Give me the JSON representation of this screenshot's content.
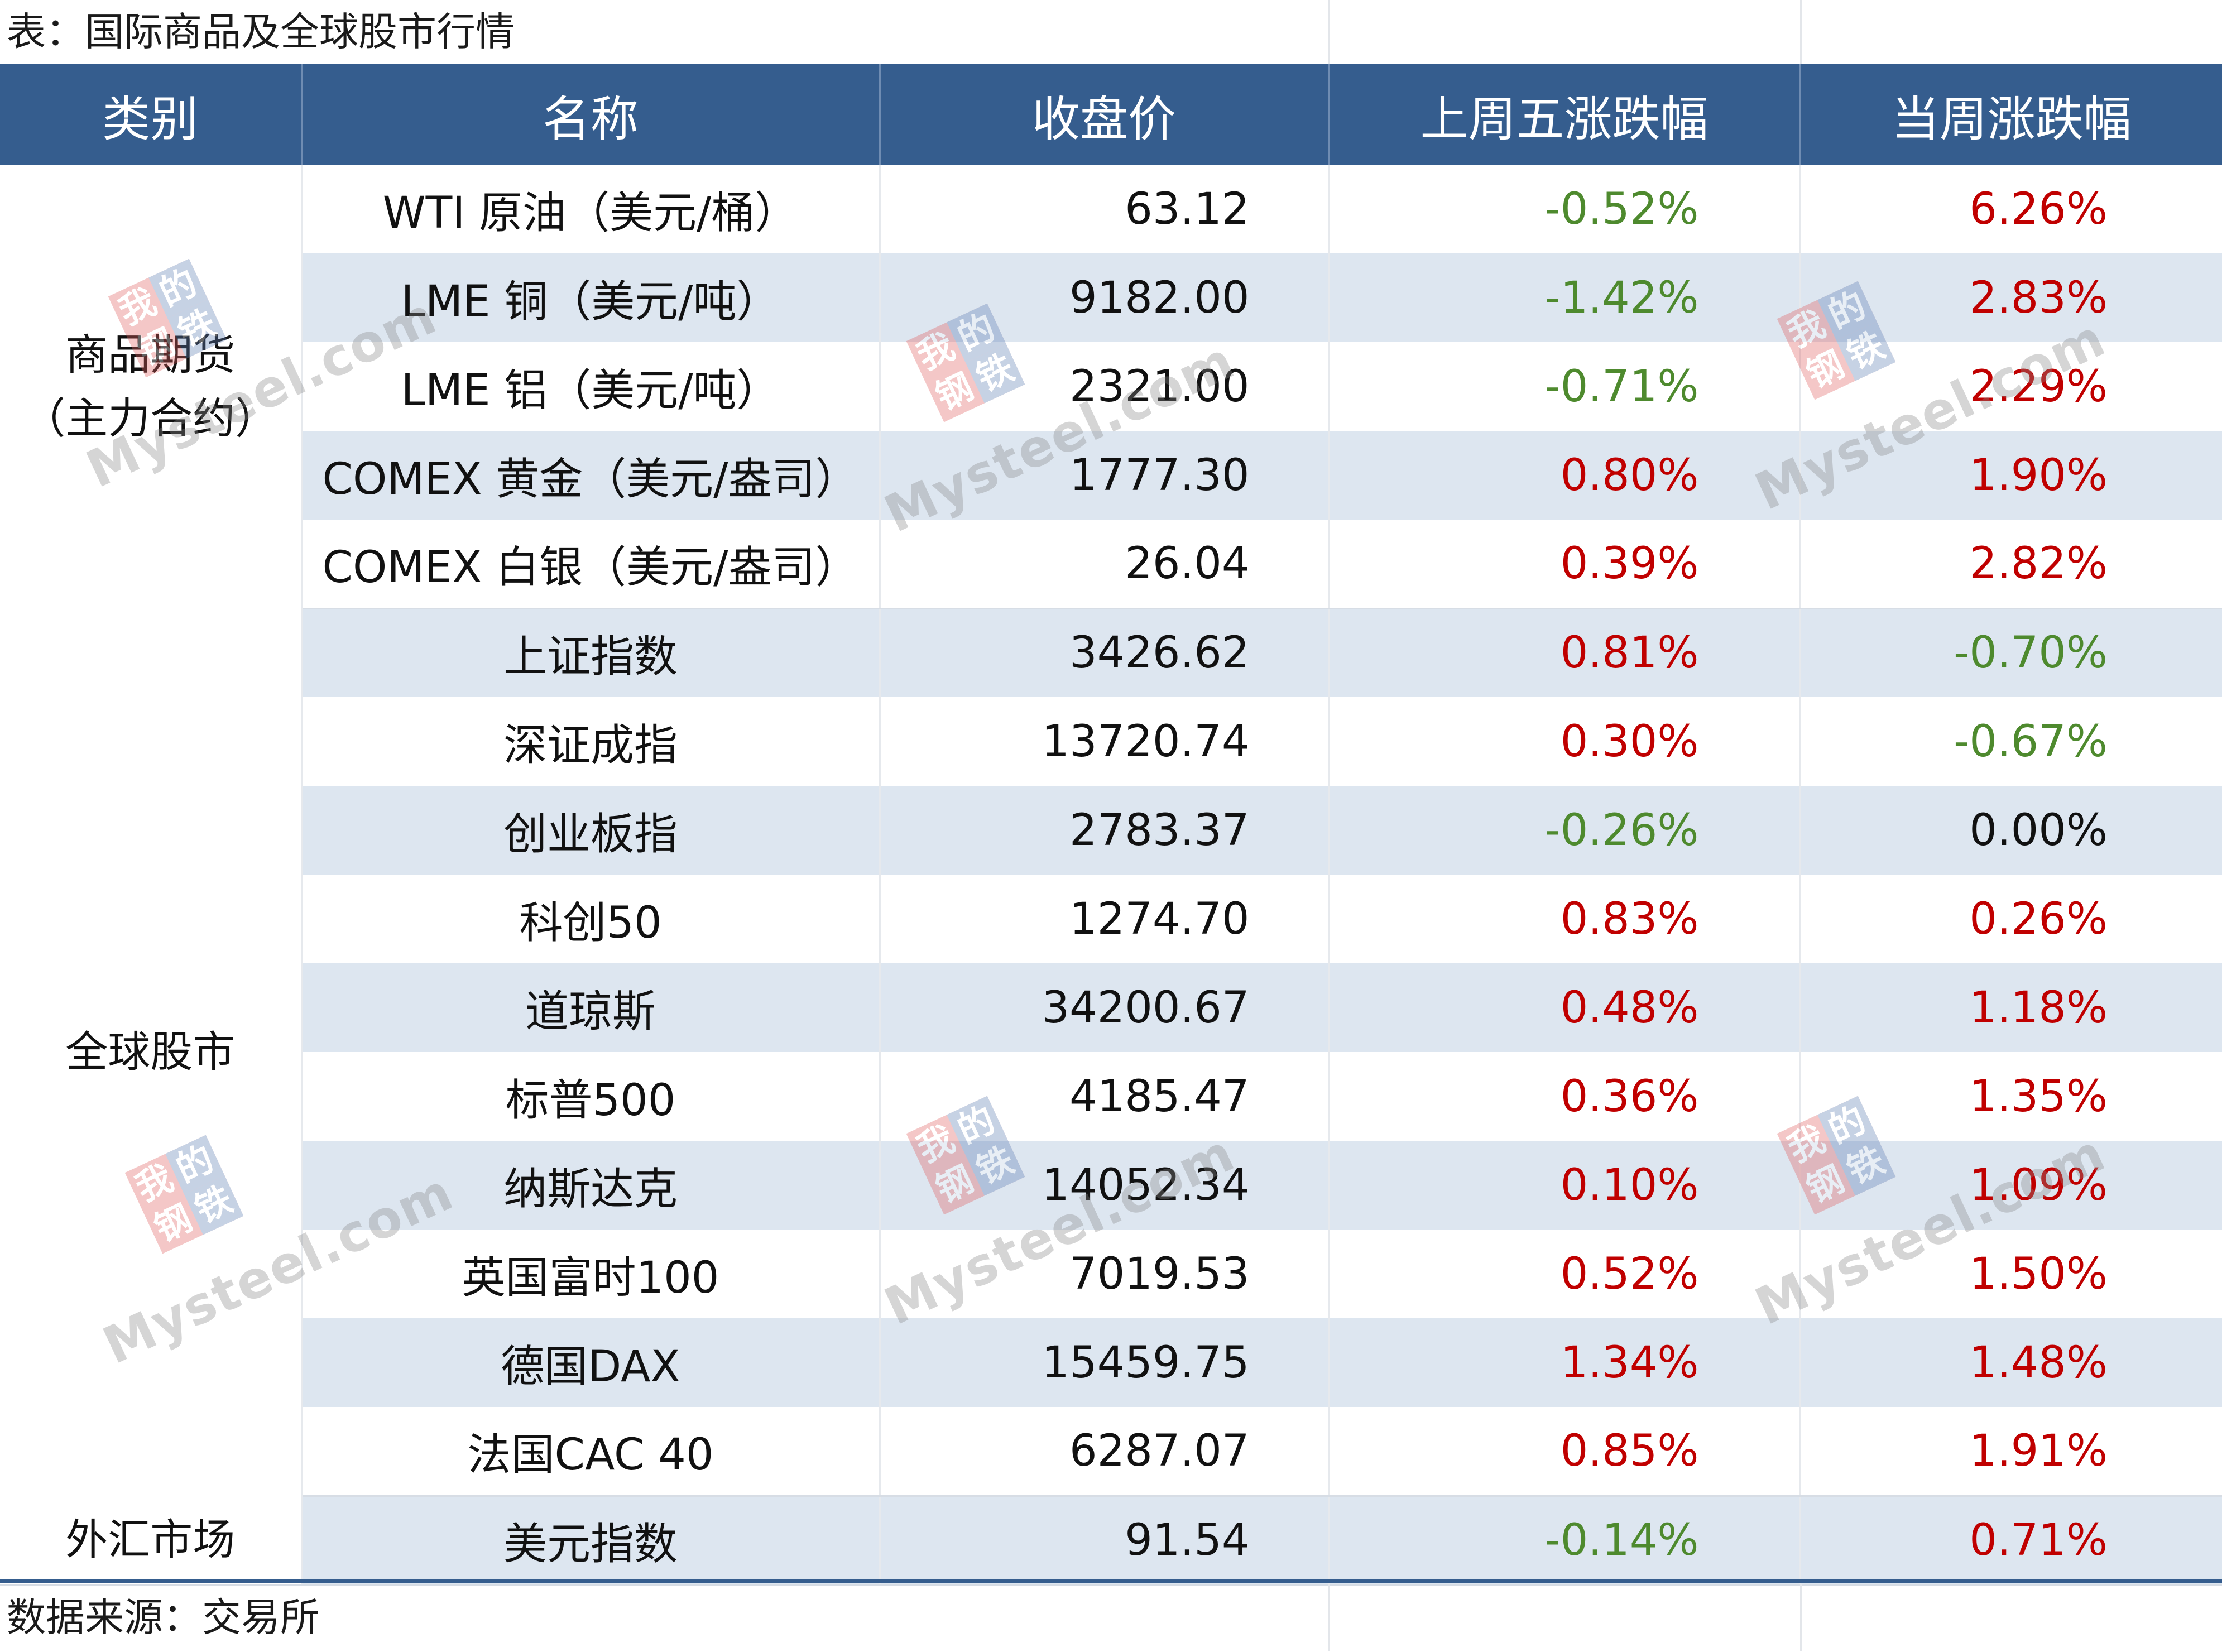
{
  "caption": "表：国际商品及全球股市行情",
  "source": "数据来源：交易所",
  "headers": [
    "类别",
    "名称",
    "收盘价",
    "上周五涨跌幅",
    "当周涨跌幅"
  ],
  "groups": [
    {
      "category_line1": "商品期货",
      "category_line2": "（主力合约）",
      "rows": [
        {
          "name": "WTI 原油（美元/桶）",
          "close": "63.12",
          "fri": "-0.52%",
          "week": "6.26%"
        },
        {
          "name": "LME 铜（美元/吨）",
          "close": "9182.00",
          "fri": "-1.42%",
          "week": "2.83%"
        },
        {
          "name": "LME 铝（美元/吨）",
          "close": "2321.00",
          "fri": "-0.71%",
          "week": "2.29%"
        },
        {
          "name": "COMEX 黄金（美元/盎司）",
          "close": "1777.30",
          "fri": "0.80%",
          "week": "1.90%"
        },
        {
          "name": "COMEX 白银（美元/盎司）",
          "close": "26.04",
          "fri": "0.39%",
          "week": "2.82%"
        }
      ]
    },
    {
      "category_line1": "全球股市",
      "category_line2": "",
      "rows": [
        {
          "name": "上证指数",
          "close": "3426.62",
          "fri": "0.81%",
          "week": "-0.70%"
        },
        {
          "name": "深证成指",
          "close": "13720.74",
          "fri": "0.30%",
          "week": "-0.67%"
        },
        {
          "name": "创业板指",
          "close": "2783.37",
          "fri": "-0.26%",
          "week": "0.00%"
        },
        {
          "name": "科创50",
          "close": "1274.70",
          "fri": "0.83%",
          "week": "0.26%"
        },
        {
          "name": "道琼斯",
          "close": "34200.67",
          "fri": "0.48%",
          "week": "1.18%"
        },
        {
          "name": "标普500",
          "close": "4185.47",
          "fri": "0.36%",
          "week": "1.35%"
        },
        {
          "name": "纳斯达克",
          "close": "14052.34",
          "fri": "0.10%",
          "week": "1.09%"
        },
        {
          "name": "英国富时100",
          "close": "7019.53",
          "fri": "0.52%",
          "week": "1.50%"
        },
        {
          "name": "德国DAX",
          "close": "15459.75",
          "fri": "1.34%",
          "week": "1.48%"
        },
        {
          "name": "法国CAC 40",
          "close": "6287.07",
          "fri": "0.85%",
          "week": "1.91%"
        }
      ]
    },
    {
      "category_line1": "外汇市场",
      "category_line2": "",
      "rows": [
        {
          "name": "美元指数",
          "close": "91.54",
          "fri": "-0.14%",
          "week": "0.71%"
        }
      ]
    }
  ],
  "watermark": {
    "stamp": [
      "我",
      "的",
      "钢",
      "铁"
    ],
    "url": "Mysteel.com"
  },
  "colors": {
    "header_bg": "#355d8e",
    "row_alt": "#dde6f0",
    "up": "#c00000",
    "down": "#4e8a2e"
  }
}
